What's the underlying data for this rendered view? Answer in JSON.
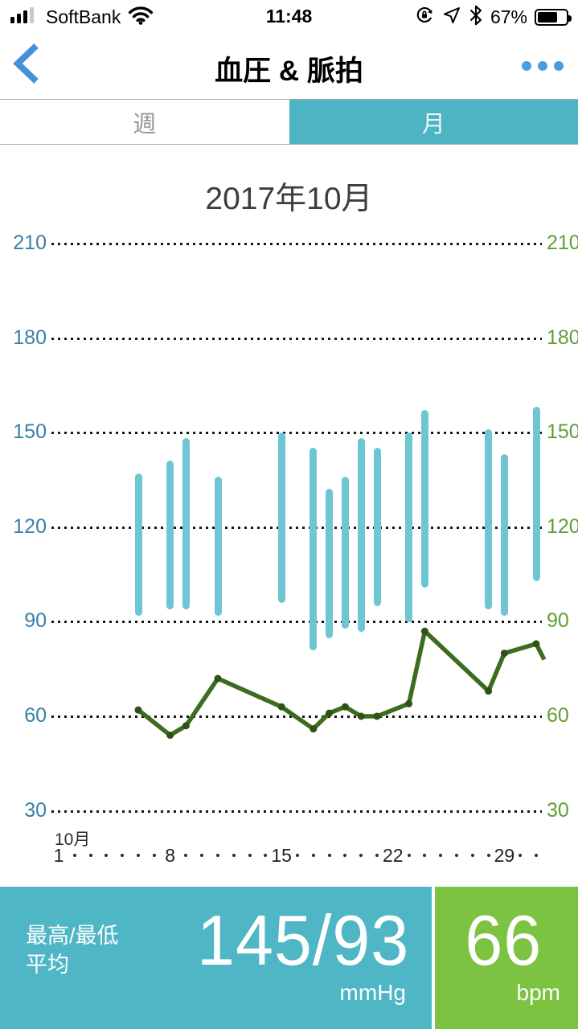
{
  "status_bar": {
    "carrier": "SoftBank",
    "time": "11:48",
    "battery_percent": "67%",
    "icons": [
      "signal-bars-icon",
      "wifi-icon",
      "orientation-lock-icon",
      "location-arrow-icon",
      "bluetooth-icon",
      "battery-icon"
    ]
  },
  "header": {
    "title": "血圧 & 脈拍",
    "back_icon": "chevron-left",
    "menu_icon": "ellipsis",
    "accent_color": "#4490da"
  },
  "tabs": [
    {
      "label": "週",
      "selected": false
    },
    {
      "label": "月",
      "selected": true,
      "selected_bg": "#4cb4c2"
    }
  ],
  "chart_data": {
    "type": "combo",
    "title": "2017年10月",
    "subtype": [
      "bar-range",
      "line"
    ],
    "y_axis": {
      "ticks": [
        210,
        180,
        150,
        120,
        90,
        60,
        30
      ],
      "left_label_color": "#3a7ea8",
      "right_label_color": "#5f9e35",
      "grid": "dotted"
    },
    "x_axis": {
      "month_label": "10月",
      "labeled_days": [
        1,
        8,
        15,
        22,
        29
      ],
      "days_in_month": 31
    },
    "series": [
      {
        "name": "blood-pressure-range",
        "type": "bar",
        "color": "#6fc6d3",
        "points": [
          {
            "day": 6,
            "high": 136,
            "low": 93
          },
          {
            "day": 8,
            "high": 140,
            "low": 95
          },
          {
            "day": 9,
            "high": 147,
            "low": 95
          },
          {
            "day": 11,
            "high": 135,
            "low": 93
          },
          {
            "day": 15,
            "high": 149,
            "low": 97
          },
          {
            "day": 17,
            "high": 144,
            "low": 82
          },
          {
            "day": 18,
            "high": 131,
            "low": 86
          },
          {
            "day": 19,
            "high": 135,
            "low": 89
          },
          {
            "day": 20,
            "high": 147,
            "low": 88
          },
          {
            "day": 21,
            "high": 144,
            "low": 96
          },
          {
            "day": 23,
            "high": 149,
            "low": 91
          },
          {
            "day": 24,
            "high": 156,
            "low": 102
          },
          {
            "day": 28,
            "high": 150,
            "low": 95
          },
          {
            "day": 29,
            "high": 142,
            "low": 93
          },
          {
            "day": 31,
            "high": 157,
            "low": 104
          }
        ]
      },
      {
        "name": "pulse",
        "type": "line",
        "color": "#3d6c1f",
        "marker_color": "#2e5316",
        "points": [
          {
            "day": 6,
            "value": 62
          },
          {
            "day": 8,
            "value": 54
          },
          {
            "day": 9,
            "value": 57
          },
          {
            "day": 11,
            "value": 72
          },
          {
            "day": 15,
            "value": 63
          },
          {
            "day": 17,
            "value": 56
          },
          {
            "day": 18,
            "value": 61
          },
          {
            "day": 19,
            "value": 63
          },
          {
            "day": 20,
            "value": 60
          },
          {
            "day": 21,
            "value": 60
          },
          {
            "day": 23,
            "value": 64
          },
          {
            "day": 24,
            "value": 87
          },
          {
            "day": 28,
            "value": 68
          },
          {
            "day": 29,
            "value": 80
          },
          {
            "day": 31,
            "value": 83
          },
          {
            "day": 31.5,
            "value": 78,
            "clipped_end": true
          }
        ]
      }
    ]
  },
  "summary": {
    "label_line1": "最高/最低",
    "label_line2": "平均",
    "bp_value": "145/93",
    "bp_unit": "mmHg",
    "bp_bg": "#4eb6c4",
    "pulse_value": "66",
    "pulse_unit": "bpm",
    "pulse_bg": "#7cc342"
  }
}
